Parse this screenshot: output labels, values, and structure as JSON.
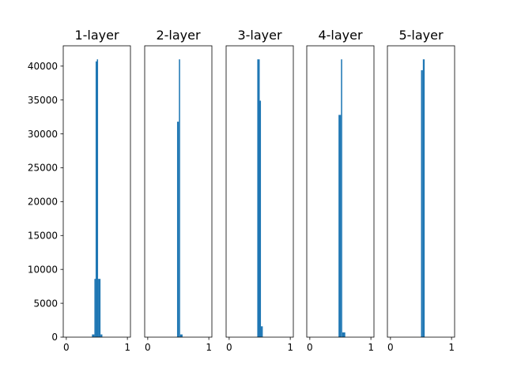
{
  "chart_data": {
    "type": "bar",
    "layout": "five side-by-side histogram panels sharing a y-axis",
    "bar_color": "#1f77b4",
    "xlim": [
      -0.05,
      1.05
    ],
    "ylim": [
      0,
      43000
    ],
    "x_ticks": [
      {
        "value": 0,
        "label": "0"
      },
      {
        "value": 1,
        "label": "1"
      }
    ],
    "y_ticks": [
      {
        "value": 0,
        "label": "0"
      },
      {
        "value": 5000,
        "label": "5000"
      },
      {
        "value": 10000,
        "label": "10000"
      },
      {
        "value": 15000,
        "label": "15000"
      },
      {
        "value": 20000,
        "label": "20000"
      },
      {
        "value": 25000,
        "label": "25000"
      },
      {
        "value": 30000,
        "label": "30000"
      },
      {
        "value": 35000,
        "label": "35000"
      },
      {
        "value": 40000,
        "label": "40000"
      }
    ],
    "panels": [
      {
        "title": "1-layer",
        "bars": [
          {
            "x0": 0.42,
            "x1": 0.46,
            "count": 400
          },
          {
            "x0": 0.46,
            "x1": 0.48,
            "count": 8600
          },
          {
            "x0": 0.48,
            "x1": 0.5,
            "count": 40700
          },
          {
            "x0": 0.5,
            "x1": 0.52,
            "count": 41000
          },
          {
            "x0": 0.52,
            "x1": 0.56,
            "count": 8600
          },
          {
            "x0": 0.56,
            "x1": 0.59,
            "count": 400
          }
        ]
      },
      {
        "title": "2-layer",
        "bars": [
          {
            "x0": 0.48,
            "x1": 0.51,
            "count": 31800
          },
          {
            "x0": 0.51,
            "x1": 0.53,
            "count": 41000
          },
          {
            "x0": 0.53,
            "x1": 0.57,
            "count": 400
          }
        ]
      },
      {
        "title": "3-layer",
        "bars": [
          {
            "x0": 0.46,
            "x1": 0.5,
            "count": 41000
          },
          {
            "x0": 0.5,
            "x1": 0.52,
            "count": 34900
          },
          {
            "x0": 0.52,
            "x1": 0.55,
            "count": 1600
          }
        ]
      },
      {
        "title": "4-layer",
        "bars": [
          {
            "x0": 0.47,
            "x1": 0.51,
            "count": 32800
          },
          {
            "x0": 0.51,
            "x1": 0.53,
            "count": 41000
          },
          {
            "x0": 0.53,
            "x1": 0.58,
            "count": 700
          }
        ]
      },
      {
        "title": "5-layer",
        "bars": [
          {
            "x0": 0.5,
            "x1": 0.53,
            "count": 39400
          },
          {
            "x0": 0.53,
            "x1": 0.56,
            "count": 41000
          }
        ]
      }
    ]
  }
}
